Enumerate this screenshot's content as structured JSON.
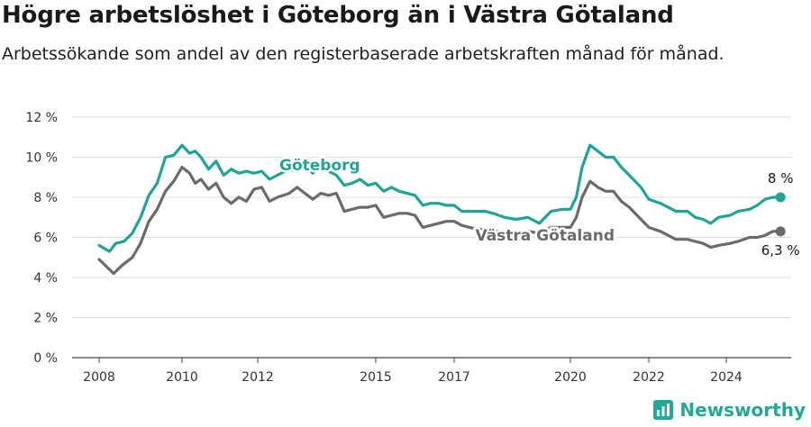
{
  "title": "Högre arbetslöshet i Göteborg än i Västra Götaland",
  "subtitle": "Arbetssökande som andel av den registerbaserade arbetskraften månad för månad.",
  "brand": {
    "name": "Newsworthy",
    "color": "#22a996"
  },
  "chart_data": {
    "type": "line",
    "title": "Högre arbetslöshet i Göteborg än i Västra Götaland",
    "subtitle": "Arbetssökande som andel av den registerbaserade arbetskraften månad för månad.",
    "ylim": [
      0,
      12
    ],
    "xlim": [
      2008.0,
      2025.8
    ],
    "y_ticks": [
      0,
      2,
      4,
      6,
      8,
      10,
      12
    ],
    "y_tick_labels": [
      "0 %",
      "2 %",
      "4 %",
      "6 %",
      "8 %",
      "10 %",
      "12 %"
    ],
    "x_ticks": [
      2008,
      2010,
      2012,
      2015,
      2017,
      2020,
      2022,
      2024
    ],
    "x_tick_labels": [
      "2008",
      "2010",
      "2012",
      "2015",
      "2017",
      "2020",
      "2022",
      "2024"
    ],
    "grid": true,
    "series": [
      {
        "name": "Göteborg",
        "color": "#1fa596",
        "end_label": "8 %",
        "points": [
          [
            2008.0,
            5.6
          ],
          [
            2008.25,
            5.3
          ],
          [
            2008.4,
            5.7
          ],
          [
            2008.6,
            5.8
          ],
          [
            2008.8,
            6.2
          ],
          [
            2009.0,
            7.0
          ],
          [
            2009.2,
            8.1
          ],
          [
            2009.4,
            8.7
          ],
          [
            2009.6,
            10.0
          ],
          [
            2009.8,
            10.1
          ],
          [
            2010.0,
            10.6
          ],
          [
            2010.2,
            10.2
          ],
          [
            2010.35,
            10.3
          ],
          [
            2010.5,
            10.0
          ],
          [
            2010.7,
            9.4
          ],
          [
            2010.9,
            9.8
          ],
          [
            2011.1,
            9.1
          ],
          [
            2011.3,
            9.4
          ],
          [
            2011.5,
            9.2
          ],
          [
            2011.7,
            9.3
          ],
          [
            2011.9,
            9.2
          ],
          [
            2012.1,
            9.3
          ],
          [
            2012.3,
            8.9
          ],
          [
            2012.5,
            9.1
          ],
          [
            2012.8,
            9.4
          ],
          [
            2013.0,
            9.3
          ],
          [
            2013.2,
            9.6
          ],
          [
            2013.4,
            9.2
          ],
          [
            2013.6,
            9.6
          ],
          [
            2013.8,
            9.3
          ],
          [
            2014.0,
            9.1
          ],
          [
            2014.2,
            8.6
          ],
          [
            2014.4,
            8.7
          ],
          [
            2014.6,
            8.9
          ],
          [
            2014.8,
            8.6
          ],
          [
            2015.0,
            8.7
          ],
          [
            2015.2,
            8.3
          ],
          [
            2015.4,
            8.5
          ],
          [
            2015.6,
            8.3
          ],
          [
            2015.8,
            8.2
          ],
          [
            2016.0,
            8.1
          ],
          [
            2016.2,
            7.6
          ],
          [
            2016.4,
            7.7
          ],
          [
            2016.6,
            7.7
          ],
          [
            2016.8,
            7.6
          ],
          [
            2017.0,
            7.6
          ],
          [
            2017.2,
            7.3
          ],
          [
            2017.4,
            7.3
          ],
          [
            2017.6,
            7.3
          ],
          [
            2017.8,
            7.3
          ],
          [
            2018.0,
            7.2
          ],
          [
            2018.3,
            7.0
          ],
          [
            2018.6,
            6.9
          ],
          [
            2018.9,
            7.0
          ],
          [
            2019.2,
            6.7
          ],
          [
            2019.5,
            7.3
          ],
          [
            2019.8,
            7.4
          ],
          [
            2020.0,
            7.4
          ],
          [
            2020.15,
            8.0
          ],
          [
            2020.3,
            9.5
          ],
          [
            2020.5,
            10.6
          ],
          [
            2020.7,
            10.3
          ],
          [
            2020.9,
            10.0
          ],
          [
            2021.1,
            10.0
          ],
          [
            2021.3,
            9.5
          ],
          [
            2021.5,
            9.1
          ],
          [
            2021.8,
            8.5
          ],
          [
            2022.0,
            7.9
          ],
          [
            2022.3,
            7.7
          ],
          [
            2022.5,
            7.5
          ],
          [
            2022.7,
            7.3
          ],
          [
            2023.0,
            7.3
          ],
          [
            2023.2,
            7.0
          ],
          [
            2023.4,
            6.9
          ],
          [
            2023.6,
            6.7
          ],
          [
            2023.8,
            7.0
          ],
          [
            2024.1,
            7.1
          ],
          [
            2024.3,
            7.3
          ],
          [
            2024.6,
            7.4
          ],
          [
            2024.8,
            7.6
          ],
          [
            2025.0,
            7.9
          ],
          [
            2025.2,
            8.0
          ],
          [
            2025.4,
            8.0
          ]
        ]
      },
      {
        "name": "Västra Götaland",
        "color": "#6b6b6b",
        "end_label": "6,3 %",
        "points": [
          [
            2008.0,
            4.9
          ],
          [
            2008.2,
            4.5
          ],
          [
            2008.35,
            4.2
          ],
          [
            2008.55,
            4.6
          ],
          [
            2008.8,
            5.0
          ],
          [
            2009.0,
            5.7
          ],
          [
            2009.2,
            6.8
          ],
          [
            2009.4,
            7.4
          ],
          [
            2009.6,
            8.3
          ],
          [
            2009.8,
            8.8
          ],
          [
            2010.0,
            9.5
          ],
          [
            2010.2,
            9.2
          ],
          [
            2010.35,
            8.7
          ],
          [
            2010.5,
            8.9
          ],
          [
            2010.7,
            8.4
          ],
          [
            2010.9,
            8.7
          ],
          [
            2011.1,
            8.0
          ],
          [
            2011.3,
            7.7
          ],
          [
            2011.5,
            8.0
          ],
          [
            2011.7,
            7.8
          ],
          [
            2011.9,
            8.4
          ],
          [
            2012.1,
            8.5
          ],
          [
            2012.3,
            7.8
          ],
          [
            2012.5,
            8.0
          ],
          [
            2012.8,
            8.2
          ],
          [
            2013.0,
            8.5
          ],
          [
            2013.2,
            8.2
          ],
          [
            2013.4,
            7.9
          ],
          [
            2013.6,
            8.2
          ],
          [
            2013.8,
            8.1
          ],
          [
            2014.0,
            8.2
          ],
          [
            2014.2,
            7.3
          ],
          [
            2014.4,
            7.4
          ],
          [
            2014.6,
            7.5
          ],
          [
            2014.8,
            7.5
          ],
          [
            2015.0,
            7.6
          ],
          [
            2015.2,
            7.0
          ],
          [
            2015.4,
            7.1
          ],
          [
            2015.6,
            7.2
          ],
          [
            2015.8,
            7.2
          ],
          [
            2016.0,
            7.1
          ],
          [
            2016.2,
            6.5
          ],
          [
            2016.4,
            6.6
          ],
          [
            2016.6,
            6.7
          ],
          [
            2016.8,
            6.8
          ],
          [
            2017.0,
            6.8
          ],
          [
            2017.2,
            6.6
          ],
          [
            2017.4,
            6.5
          ],
          [
            2017.6,
            6.4
          ],
          [
            2017.8,
            6.4
          ],
          [
            2018.0,
            6.3
          ],
          [
            2018.3,
            6.3
          ],
          [
            2018.6,
            6.2
          ],
          [
            2018.9,
            6.3
          ],
          [
            2019.2,
            6.2
          ],
          [
            2019.5,
            6.5
          ],
          [
            2019.8,
            6.5
          ],
          [
            2020.0,
            6.5
          ],
          [
            2020.15,
            7.0
          ],
          [
            2020.3,
            8.0
          ],
          [
            2020.5,
            8.8
          ],
          [
            2020.7,
            8.5
          ],
          [
            2020.9,
            8.3
          ],
          [
            2021.1,
            8.3
          ],
          [
            2021.3,
            7.8
          ],
          [
            2021.5,
            7.5
          ],
          [
            2021.8,
            6.9
          ],
          [
            2022.0,
            6.5
          ],
          [
            2022.3,
            6.3
          ],
          [
            2022.5,
            6.1
          ],
          [
            2022.7,
            5.9
          ],
          [
            2023.0,
            5.9
          ],
          [
            2023.2,
            5.8
          ],
          [
            2023.4,
            5.7
          ],
          [
            2023.6,
            5.5
          ],
          [
            2023.8,
            5.6
          ],
          [
            2024.1,
            5.7
          ],
          [
            2024.3,
            5.8
          ],
          [
            2024.6,
            6.0
          ],
          [
            2024.8,
            6.0
          ],
          [
            2025.0,
            6.1
          ],
          [
            2025.2,
            6.3
          ],
          [
            2025.4,
            6.3
          ]
        ]
      }
    ]
  }
}
